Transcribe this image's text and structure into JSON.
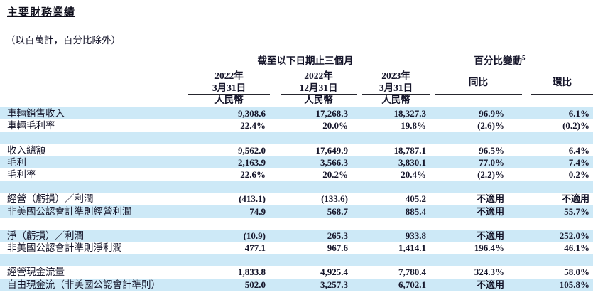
{
  "document": {
    "title": "主要財務業績",
    "subtitle": "（以百萬計，百分比除外）"
  },
  "table": {
    "period_group_header": "截至以下日期止三個月",
    "change_group_header": "百分比變動",
    "change_group_superscript": "5",
    "period_columns": [
      {
        "year": "2022年",
        "date": "3月31日",
        "currency": "人民幣"
      },
      {
        "year": "2022年",
        "date": "12月31日",
        "currency": "人民幣"
      },
      {
        "year": "2023年",
        "date": "3月31日",
        "currency": "人民幣"
      }
    ],
    "change_columns": [
      {
        "label": "同比"
      },
      {
        "label": "環比"
      }
    ],
    "rows": [
      {
        "label": "車輛銷售收入",
        "values": [
          "9,308.6",
          "17,268.3",
          "18,327.3",
          "96.9%",
          "6.1%"
        ]
      },
      {
        "label": "車輛毛利率",
        "values": [
          "22.4%",
          "20.0%",
          "19.8%",
          "(2.6)%",
          "(0.2)%"
        ]
      },
      {
        "label": "",
        "values": [
          "",
          "",
          "",
          "",
          ""
        ]
      },
      {
        "label": "收入總額",
        "values": [
          "9,562.0",
          "17,649.9",
          "18,787.1",
          "96.5%",
          "6.4%"
        ]
      },
      {
        "label": "毛利",
        "values": [
          "2,163.9",
          "3,566.3",
          "3,830.1",
          "77.0%",
          "7.4%"
        ]
      },
      {
        "label": "毛利率",
        "values": [
          "22.6%",
          "20.2%",
          "20.4%",
          "(2.2)%",
          "0.2%"
        ]
      },
      {
        "label": "",
        "values": [
          "",
          "",
          "",
          "",
          ""
        ]
      },
      {
        "label": "經營（虧損）／利潤",
        "values": [
          "(413.1)",
          "(133.6)",
          "405.2",
          "不適用",
          "不適用"
        ]
      },
      {
        "label": "非美國公認會計準則經營利潤",
        "values": [
          "74.9",
          "568.7",
          "885.4",
          "不適用",
          "55.7%"
        ]
      },
      {
        "label": "",
        "values": [
          "",
          "",
          "",
          "",
          ""
        ]
      },
      {
        "label": "淨（虧損）／利潤",
        "values": [
          "(10.9)",
          "265.3",
          "933.8",
          "不適用",
          "252.0%"
        ]
      },
      {
        "label": "非美國公認會計準則淨利潤",
        "values": [
          "477.1",
          "967.6",
          "1,414.1",
          "196.4%",
          "46.1%"
        ]
      },
      {
        "label": "",
        "values": [
          "",
          "",
          "",
          "",
          ""
        ]
      },
      {
        "label": "經營現金流量",
        "values": [
          "1,833.8",
          "4,925.4",
          "7,780.4",
          "324.3%",
          "58.0%"
        ]
      },
      {
        "label": "自由現金流（非美國公認會計準則）",
        "values": [
          "502.0",
          "3,257.3",
          "6,702.1",
          "不適用",
          "105.8%"
        ]
      }
    ]
  },
  "colors": {
    "stripe": "#cde9f7",
    "text": "#15152a",
    "rule": "#26262e"
  }
}
